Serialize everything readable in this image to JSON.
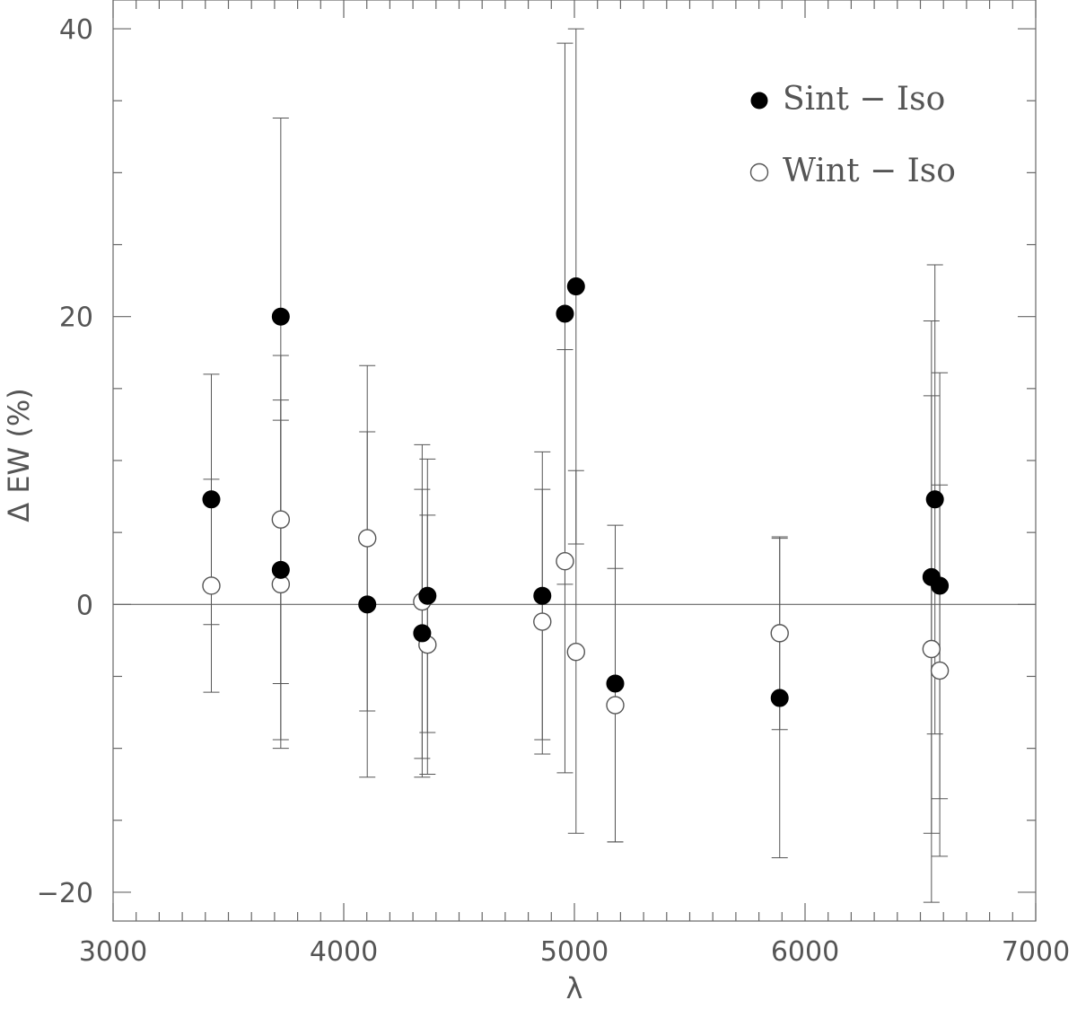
{
  "chart_data": {
    "type": "scatter",
    "xlabel": "λ",
    "ylabel": "Δ EW (%)",
    "xlim": [
      3000,
      7000
    ],
    "ylim": [
      -22,
      42
    ],
    "x_ticks": [
      3000,
      4000,
      5000,
      6000,
      7000
    ],
    "y_ticks": [
      -20,
      0,
      20,
      40
    ],
    "x_tick_labels": [
      "3000",
      "4000",
      "5000",
      "6000",
      "7000"
    ],
    "y_tick_labels": [
      "−20",
      "0",
      "20",
      "40"
    ],
    "reference_line_y": 0,
    "grid": false,
    "legend_position": "top-right",
    "series": [
      {
        "name": "Sint − Iso",
        "marker": "filled-circle",
        "color": "#000000",
        "points": [
          {
            "x": 3426,
            "y": 7.3,
            "err": 8.7
          },
          {
            "x": 3727,
            "y": 20.0,
            "err": 13.8
          },
          {
            "x": 3727,
            "y": 2.4,
            "err": 11.8
          },
          {
            "x": 4102,
            "y": 0.0,
            "err": 12.0
          },
          {
            "x": 4340,
            "y": -2.0,
            "err": 10.0
          },
          {
            "x": 4363,
            "y": 0.6,
            "err": 9.5
          },
          {
            "x": 4861,
            "y": 0.6,
            "err": 10.0
          },
          {
            "x": 4959,
            "y": 20.2,
            "err": 18.8
          },
          {
            "x": 5007,
            "y": 22.1,
            "err": 17.9
          },
          {
            "x": 5177,
            "y": -5.5,
            "err": 11.0
          },
          {
            "x": 5890,
            "y": -6.5,
            "err": 11.1
          },
          {
            "x": 6548,
            "y": 1.9,
            "err": 17.8
          },
          {
            "x": 6563,
            "y": 7.3,
            "err": 16.3
          },
          {
            "x": 6584,
            "y": 1.3,
            "err": 14.8
          }
        ]
      },
      {
        "name": "Wint − Iso",
        "marker": "open-circle",
        "color": "#000000",
        "points": [
          {
            "x": 3426,
            "y": 1.3,
            "err": 7.4
          },
          {
            "x": 3727,
            "y": 5.9,
            "err": 11.4
          },
          {
            "x": 3727,
            "y": 1.4,
            "err": 11.4
          },
          {
            "x": 4102,
            "y": 4.6,
            "err": 12.0
          },
          {
            "x": 4340,
            "y": 0.2,
            "err": 10.9
          },
          {
            "x": 4363,
            "y": -2.8,
            "err": 9.0
          },
          {
            "x": 4861,
            "y": -1.2,
            "err": 9.2
          },
          {
            "x": 4959,
            "y": 3.0,
            "err": 14.7
          },
          {
            "x": 5007,
            "y": -3.3,
            "err": 12.6
          },
          {
            "x": 5177,
            "y": -7.0,
            "err": 9.5
          },
          {
            "x": 5890,
            "y": -2.0,
            "err": 6.7
          },
          {
            "x": 6548,
            "y": -3.1,
            "err": 17.6
          },
          {
            "x": 6584,
            "y": -4.6,
            "err": 12.9
          }
        ]
      }
    ],
    "legend_labels": [
      "Sint − Iso",
      "Wint − Iso"
    ]
  }
}
